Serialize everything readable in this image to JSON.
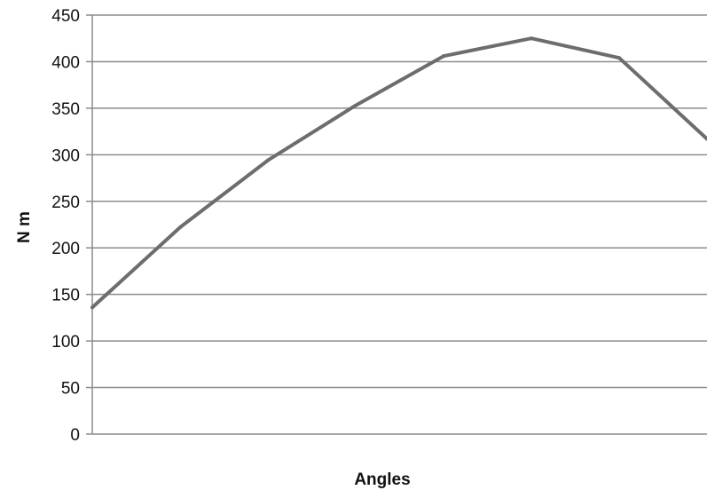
{
  "chart_data": {
    "type": "line",
    "title": "",
    "xlabel": "Angles",
    "ylabel": "N m",
    "ylim": [
      0,
      450
    ],
    "y_ticks": [
      "0",
      "50",
      "100",
      "150",
      "200",
      "250",
      "300",
      "350",
      "400",
      "450"
    ],
    "x_tick_labels_shown": false,
    "grid": "horizontal",
    "legend": "none",
    "line_color": "#6d6d6d",
    "series": [
      {
        "values": [
          136,
          222,
          294,
          353,
          406,
          425,
          404,
          317
        ]
      }
    ]
  }
}
